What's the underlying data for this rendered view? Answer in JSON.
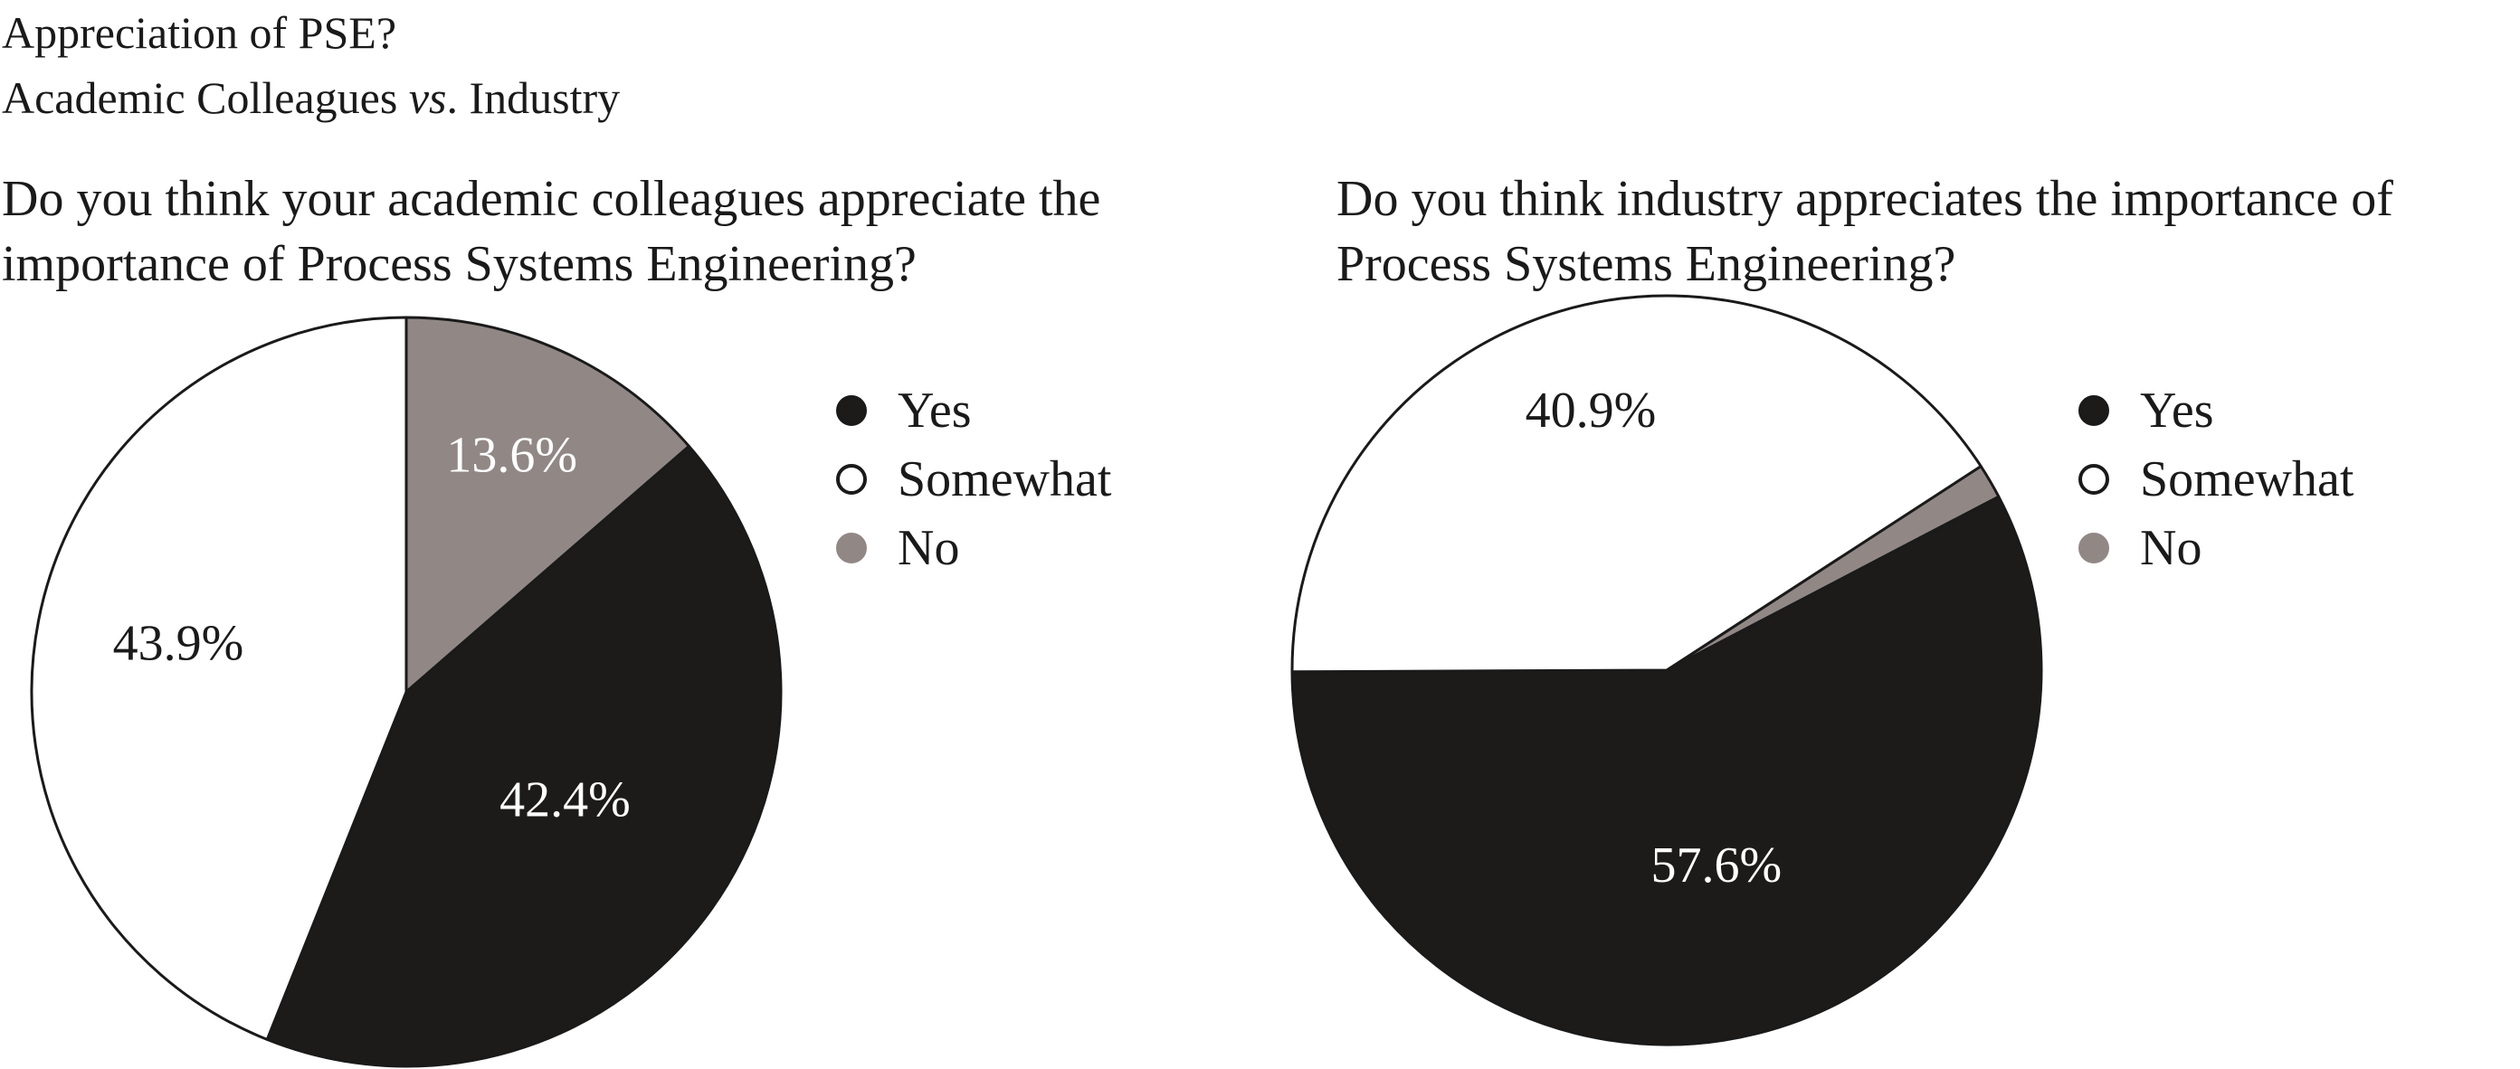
{
  "figure": {
    "title_line1": "Appreciation of PSE?",
    "title_line2_a": "Academic Colleagues ",
    "title_line2_vs": "vs",
    "title_line2_b": ". Industry"
  },
  "colors": {
    "yes": "#1d1b19",
    "somewhat": "#ffffff",
    "no": "#918886",
    "outline": "#1a1a1a"
  },
  "chart_data": [
    {
      "type": "pie",
      "title_line1": "Do you think your academic colleagues appreciate the",
      "title_line2": "importance of Process Systems Engineering?",
      "legend": [
        "Yes",
        "Somewhat",
        "No"
      ],
      "slices": [
        {
          "label": "Yes",
          "value": 42.4,
          "text": "42.4%"
        },
        {
          "label": "Somewhat",
          "value": 43.9,
          "text": "43.9%"
        },
        {
          "label": "No",
          "value": 13.6,
          "text": "13.6%"
        }
      ]
    },
    {
      "type": "pie",
      "title_line1": "Do you think industry appreciates the importance of",
      "title_line2": "Process Systems Engineering?",
      "legend": [
        "Yes",
        "Somewhat",
        "No"
      ],
      "slices": [
        {
          "label": "Yes",
          "value": 57.6,
          "text": "57.6%"
        },
        {
          "label": "Somewhat",
          "value": 40.9,
          "text": "40.9%"
        },
        {
          "label": "No",
          "value": 1.5,
          "text": ""
        }
      ]
    }
  ]
}
